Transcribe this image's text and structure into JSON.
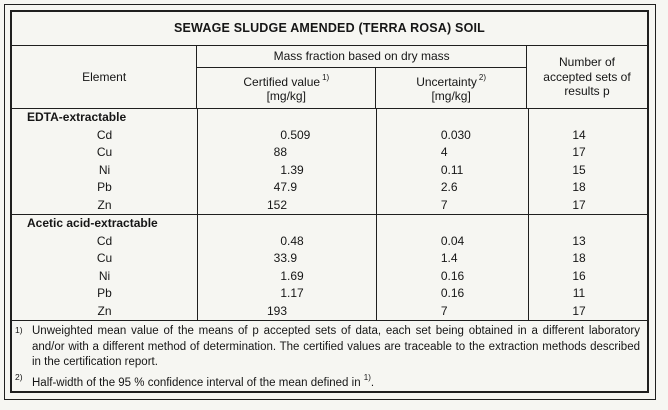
{
  "title": "SEWAGE SLUDGE AMENDED (TERRA ROSA) SOIL",
  "header": {
    "element": "Element",
    "mass_fraction": "Mass fraction based on dry mass",
    "certified_label": "Certified value",
    "certified_sup": "1)",
    "certified_unit": "[mg/kg]",
    "uncertainty_label": "Uncertainty",
    "uncertainty_sup": "2)",
    "uncertainty_unit": "[mg/kg]",
    "accepted_sets": "Number of accepted sets of results p"
  },
  "sections": [
    {
      "name": "EDTA-extractable",
      "rows": [
        {
          "element": "Cd",
          "certified": "0.509",
          "uncertainty": "0.030",
          "p": "14"
        },
        {
          "element": "Cu",
          "certified": "88",
          "uncertainty": "4",
          "p": "17"
        },
        {
          "element": "Ni",
          "certified": "1.39",
          "uncertainty": "0.11",
          "p": "15"
        },
        {
          "element": "Pb",
          "certified": "47.9",
          "uncertainty": "2.6",
          "p": "18"
        },
        {
          "element": "Zn",
          "certified": "152",
          "uncertainty": "7",
          "p": "17"
        }
      ]
    },
    {
      "name": "Acetic acid-extractable",
      "rows": [
        {
          "element": "Cd",
          "certified": "0.48",
          "uncertainty": "0.04",
          "p": "13"
        },
        {
          "element": "Cu",
          "certified": "33.9",
          "uncertainty": "1.4",
          "p": "18"
        },
        {
          "element": "Ni",
          "certified": "1.69",
          "uncertainty": "0.16",
          "p": "16"
        },
        {
          "element": "Pb",
          "certified": "1.17",
          "uncertainty": "0.16",
          "p": "11"
        },
        {
          "element": "Zn",
          "certified": "193",
          "uncertainty": "7",
          "p": "17"
        }
      ]
    }
  ],
  "footnotes": [
    {
      "marker": "1)",
      "text": "Unweighted mean value of the means of p accepted sets of data, each set being obtained in a different laboratory and/or with a different method of determination. The certified values are traceable to the extraction methods described in the certification report."
    },
    {
      "marker": "2)",
      "text": "Half-width of the 95 % confidence interval of the mean defined in ",
      "sup": "1)",
      "tail": "."
    }
  ],
  "colors": {
    "background": "#f6f6f2",
    "line": "#1f1f1f",
    "text": "#161616"
  }
}
